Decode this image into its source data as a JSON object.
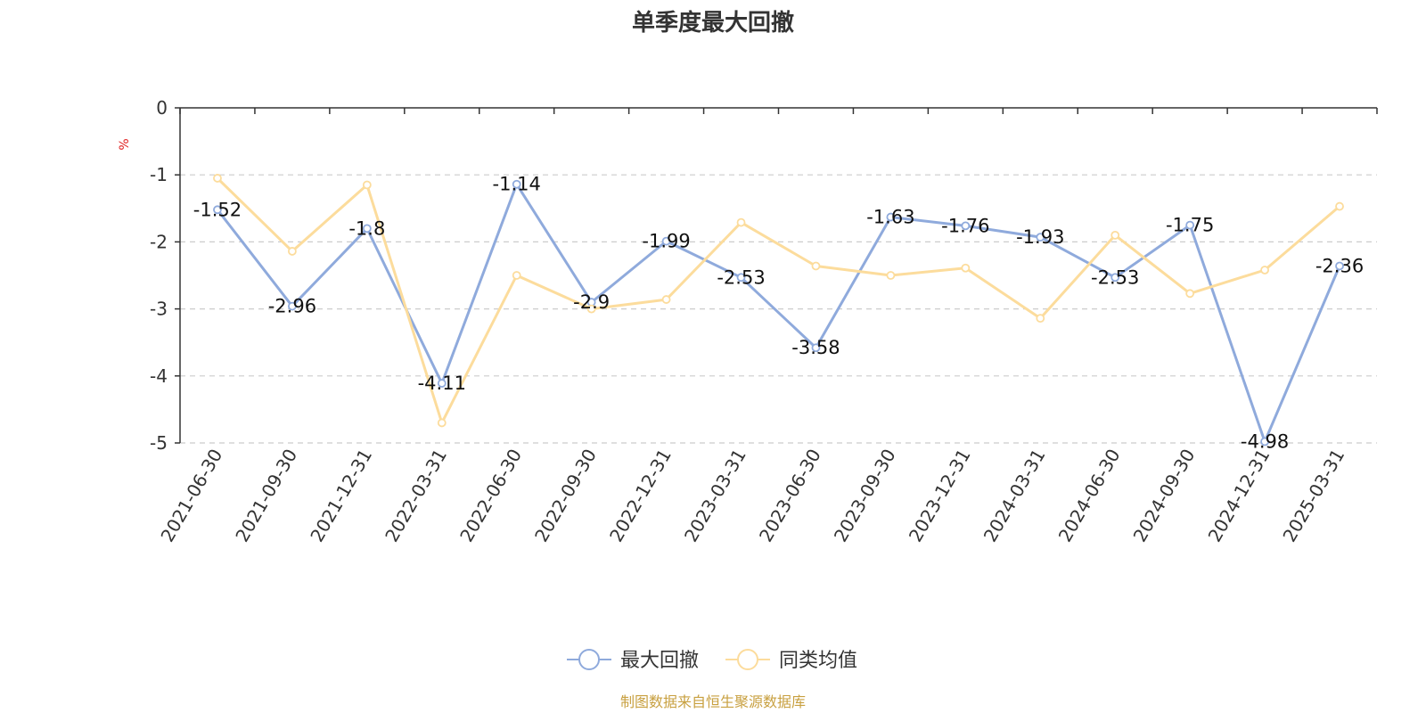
{
  "chart_data": {
    "type": "line",
    "title": "单季度最大回撤",
    "ylabel": "%",
    "xlabel": "",
    "ylim": [
      -5,
      0
    ],
    "yticks": [
      0,
      -1,
      -2,
      -3,
      -4,
      -5
    ],
    "grid": true,
    "legend_position": "bottom-center",
    "categories": [
      "2021-06-30",
      "2021-09-30",
      "2021-12-31",
      "2022-03-31",
      "2022-06-30",
      "2022-09-30",
      "2022-12-31",
      "2023-03-31",
      "2023-06-30",
      "2023-09-30",
      "2023-12-31",
      "2024-03-31",
      "2024-06-30",
      "2024-09-30",
      "2024-12-31",
      "2025-03-31"
    ],
    "series": [
      {
        "name": "最大回撤",
        "color": "#8faadc",
        "show_labels": true,
        "values": [
          -1.52,
          -2.96,
          -1.8,
          -4.11,
          -1.14,
          -2.9,
          -1.99,
          -2.53,
          -3.58,
          -1.63,
          -1.76,
          -1.93,
          -2.53,
          -1.75,
          -4.98,
          -2.36
        ]
      },
      {
        "name": "同类均值",
        "color": "#fcdc9c",
        "show_labels": false,
        "values": [
          -1.05,
          -2.14,
          -1.15,
          -4.7,
          -2.5,
          -3.0,
          -2.86,
          -1.71,
          -2.36,
          -2.5,
          -2.39,
          -3.14,
          -1.9,
          -2.77,
          -2.42,
          -1.47
        ]
      }
    ],
    "source": "制图数据来自恒生聚源数据库",
    "colors": {
      "axis": "#333333",
      "grid": "#cccccc",
      "unit": "#e02020",
      "source": "#c8a040"
    }
  }
}
